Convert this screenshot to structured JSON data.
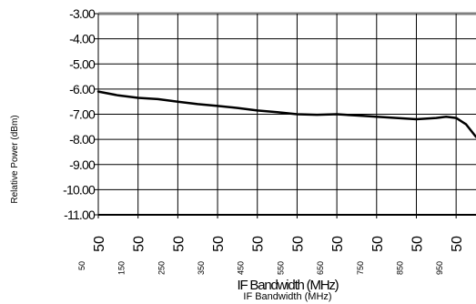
{
  "chart_data": {
    "type": "line",
    "ylabel": "Relative Power (dBm)",
    "xlabel": "IF Bandwidth (MHz)",
    "ylim": [
      -11.0,
      -3.0
    ],
    "xlim": [
      50,
      1000
    ],
    "y_ticks": [
      "-3.00",
      "-4.00",
      "-5.00",
      "-6.00",
      "-7.00",
      "-8.00",
      "-9.00",
      "-10.00",
      "-11.00"
    ],
    "x_tick_labels_large": [
      "50",
      "50",
      "50",
      "50",
      "50",
      "50",
      "50",
      "50",
      "50",
      "50",
      "50"
    ],
    "x_tick_labels_small": [
      "50",
      "150",
      "250",
      "350",
      "450",
      "550",
      "650",
      "750",
      "850",
      "950"
    ],
    "grid": true,
    "series": [
      {
        "x": [
          50,
          100,
          150,
          200,
          250,
          300,
          350,
          400,
          450,
          500,
          550,
          600,
          650,
          700,
          750,
          800,
          850,
          900,
          925,
          950,
          975,
          1000
        ],
        "y": [
          -6.1,
          -6.25,
          -6.35,
          -6.4,
          -6.5,
          -6.6,
          -6.67,
          -6.75,
          -6.85,
          -6.92,
          -7.0,
          -7.02,
          -7.0,
          -7.05,
          -7.1,
          -7.15,
          -7.2,
          -7.15,
          -7.1,
          -7.15,
          -7.4,
          -7.9
        ],
        "color": "#000000"
      }
    ]
  }
}
